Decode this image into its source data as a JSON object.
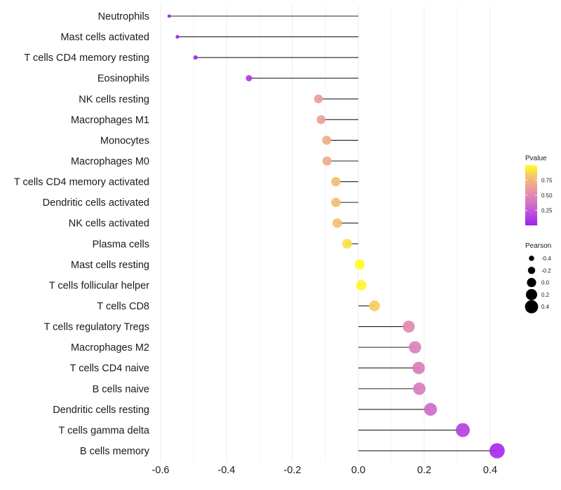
{
  "chart_data": {
    "type": "lollipop",
    "title": "",
    "xlabel": "",
    "ylabel": "",
    "xlim": [
      -0.63,
      0.44
    ],
    "x_ticks": [
      -0.6,
      -0.4,
      -0.2,
      0.0,
      0.2,
      0.4
    ],
    "x_tick_labels": [
      "-0.6",
      "-0.4",
      "-0.2",
      "0.0",
      "0.2",
      "0.4"
    ],
    "grid": true,
    "categories": [
      "Neutrophils",
      "Mast cells activated",
      "T cells CD4 memory resting",
      "Eosinophils",
      "NK cells resting",
      "Macrophages M1",
      "Monocytes",
      "Macrophages M0",
      "T cells CD4 memory activated",
      "Dendritic cells activated",
      "NK cells activated",
      "Plasma cells",
      "Mast cells resting",
      "T cells follicular helper",
      "T cells CD8",
      "T cells regulatory  Tregs ",
      "Macrophages M2",
      "T cells CD4 naive",
      "B cells naive",
      "Dendritic cells resting",
      "T cells gamma delta",
      "B cells memory"
    ],
    "pearson": [
      -0.574,
      -0.549,
      -0.494,
      -0.332,
      -0.121,
      -0.113,
      -0.096,
      -0.095,
      -0.068,
      -0.068,
      -0.064,
      -0.034,
      0.004,
      0.009,
      0.049,
      0.153,
      0.172,
      0.183,
      0.185,
      0.219,
      0.317,
      0.421
    ],
    "pvalue": [
      0.01,
      0.01,
      0.02,
      0.12,
      0.62,
      0.63,
      0.7,
      0.7,
      0.79,
      0.79,
      0.8,
      0.9,
      0.99,
      0.97,
      0.84,
      0.5,
      0.45,
      0.43,
      0.43,
      0.33,
      0.15,
      0.05
    ],
    "legend": {
      "color": {
        "title": "Pvalue",
        "ticks": [
          0.25,
          0.5,
          0.75
        ],
        "tick_labels": [
          "0.25",
          "0.50",
          "0.75"
        ],
        "range": [
          0.0,
          1.0
        ],
        "low_color": "#A020F0",
        "mid_color": "#E08CB0",
        "high_color": "#FFFF00"
      },
      "size": {
        "title": "Pearson",
        "values": [
          -0.4,
          -0.2,
          0.0,
          0.2,
          0.4
        ],
        "labels": [
          "-0.4",
          "-0.2",
          "0.0",
          "0.2",
          "0.4"
        ]
      },
      "placement": "right"
    }
  }
}
